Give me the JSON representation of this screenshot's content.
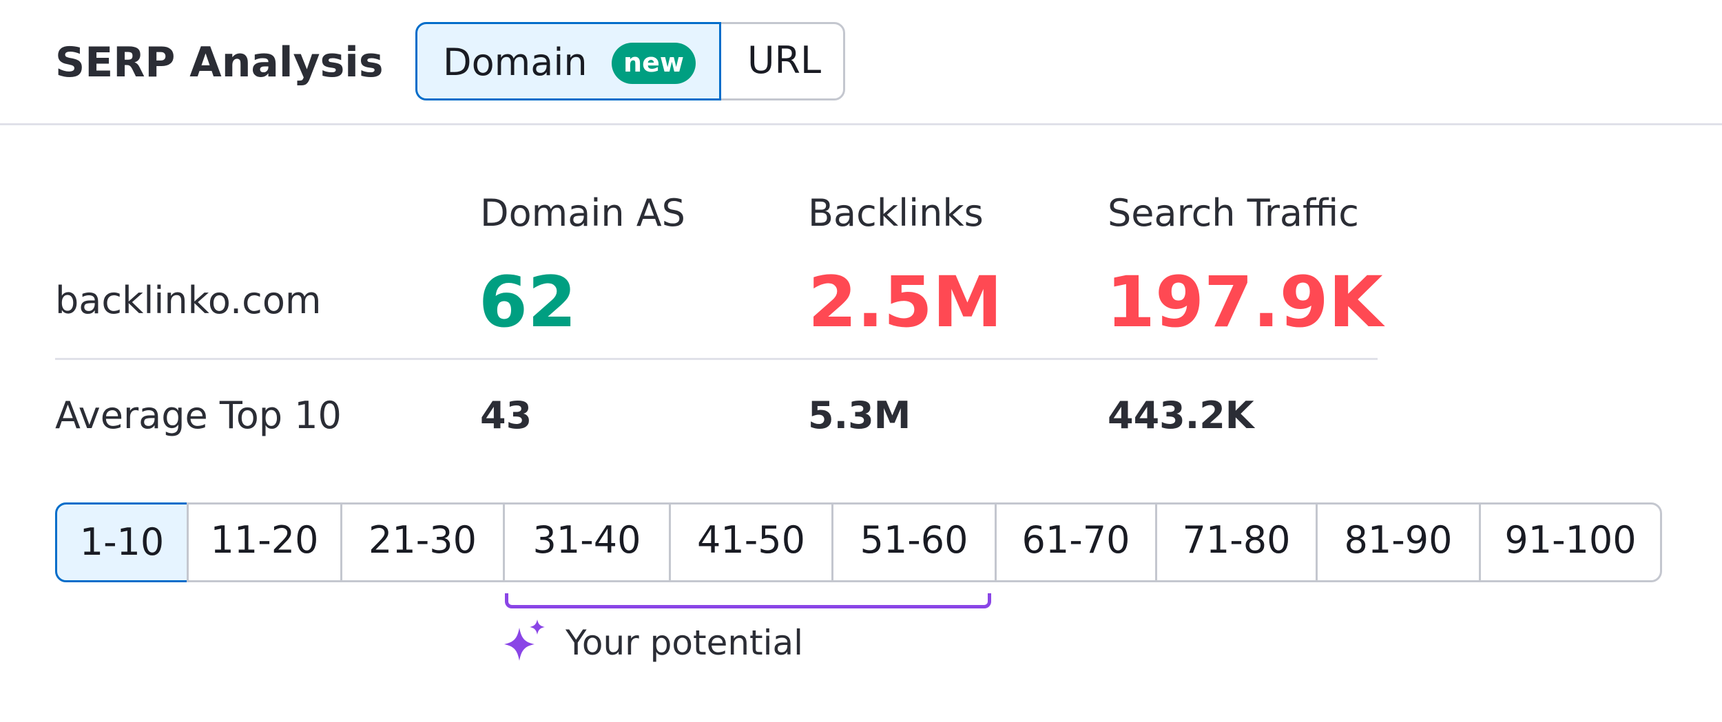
{
  "header": {
    "title": "SERP Analysis",
    "tabs": [
      {
        "label": "Domain",
        "badge": "new"
      },
      {
        "label": "URL"
      }
    ]
  },
  "metrics": {
    "columns": [
      "Domain AS",
      "Backlinks",
      "Search Traffic"
    ],
    "rows": [
      {
        "label": "backlinko.com",
        "values": [
          "62",
          "2.5M",
          "197.9K"
        ]
      },
      {
        "label": "Average Top 10",
        "values": [
          "43",
          "5.3M",
          "443.2K"
        ]
      }
    ]
  },
  "ranges": [
    "1-10",
    "11-20",
    "21-30",
    "31-40",
    "41-50",
    "51-60",
    "61-70",
    "71-80",
    "81-90",
    "91-100"
  ],
  "potential": {
    "label": "Your potential"
  }
}
